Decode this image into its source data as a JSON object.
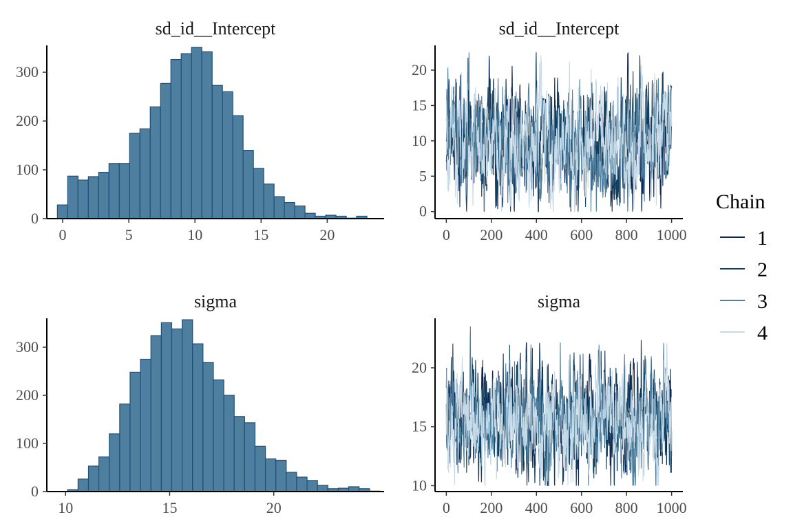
{
  "chart_data": [
    {
      "id": "hist-sd",
      "type": "bar",
      "title": "sd_id__Intercept",
      "xlabel": "",
      "ylabel": "",
      "x_ticks": [
        0,
        5,
        10,
        15,
        20
      ],
      "y_ticks": [
        0,
        100,
        200,
        300
      ],
      "xlim": [
        -1.2,
        24.3
      ],
      "ylim": [
        0,
        355
      ],
      "bin_start": -0.4,
      "bin_width": 0.78,
      "values": [
        28,
        87,
        79,
        86,
        95,
        113,
        113,
        175,
        184,
        229,
        277,
        326,
        338,
        351,
        342,
        273,
        260,
        211,
        140,
        103,
        71,
        45,
        33,
        26,
        11,
        5,
        7,
        5,
        1,
        5
      ],
      "fill": "#4e7f9e",
      "edge": "#1f4f7a"
    },
    {
      "id": "trace-sd",
      "type": "line",
      "title": "sd_id__Intercept",
      "xlabel": "",
      "ylabel": "",
      "x_ticks": [
        0,
        200,
        400,
        600,
        800,
        1000
      ],
      "y_ticks": [
        0,
        5,
        10,
        15,
        20
      ],
      "xlim": [
        -50,
        1050
      ],
      "ylim": [
        -1,
        23.5
      ],
      "iterations": 1000,
      "trace": {
        "center": 10,
        "spread": 4.5,
        "min": 0,
        "max": 22.5
      },
      "series": [
        {
          "name": "1",
          "color": "#0b2752"
        },
        {
          "name": "2",
          "color": "#12405e"
        },
        {
          "name": "3",
          "color": "#4e7f9e"
        },
        {
          "name": "4",
          "color": "#c6dae7"
        }
      ]
    },
    {
      "id": "hist-sigma",
      "type": "bar",
      "title": "sigma",
      "xlabel": "",
      "ylabel": "",
      "x_ticks": [
        10,
        15,
        20
      ],
      "y_ticks": [
        0,
        100,
        200,
        300
      ],
      "xlim": [
        9.1,
        25.3
      ],
      "ylim": [
        0,
        360
      ],
      "bin_start": 10.1,
      "bin_width": 0.5,
      "values": [
        4,
        26,
        53,
        72,
        120,
        182,
        248,
        275,
        324,
        351,
        338,
        357,
        307,
        268,
        232,
        200,
        156,
        143,
        94,
        68,
        65,
        40,
        30,
        23,
        13,
        6,
        7,
        10,
        6,
        1
      ],
      "fill": "#4e7f9e",
      "edge": "#1f4f7a"
    },
    {
      "id": "trace-sigma",
      "type": "line",
      "title": "sigma",
      "xlabel": "",
      "ylabel": "",
      "x_ticks": [
        0,
        200,
        400,
        600,
        800,
        1000
      ],
      "y_ticks": [
        10,
        15,
        20
      ],
      "xlim": [
        -50,
        1050
      ],
      "ylim": [
        9.5,
        24.2
      ],
      "iterations": 1000,
      "trace": {
        "center": 15.5,
        "spread": 2.6,
        "min": 10,
        "max": 23.5
      },
      "series": [
        {
          "name": "1",
          "color": "#0b2752"
        },
        {
          "name": "2",
          "color": "#12405e"
        },
        {
          "name": "3",
          "color": "#4e7f9e"
        },
        {
          "name": "4",
          "color": "#c6dae7"
        }
      ]
    }
  ],
  "legend": {
    "title": "Chain",
    "placement": "right",
    "items": [
      {
        "label": "1",
        "color": "#0b2752"
      },
      {
        "label": "2",
        "color": "#12405e"
      },
      {
        "label": "3",
        "color": "#4e7f9e"
      },
      {
        "label": "4",
        "color": "#c6dae7"
      }
    ]
  }
}
